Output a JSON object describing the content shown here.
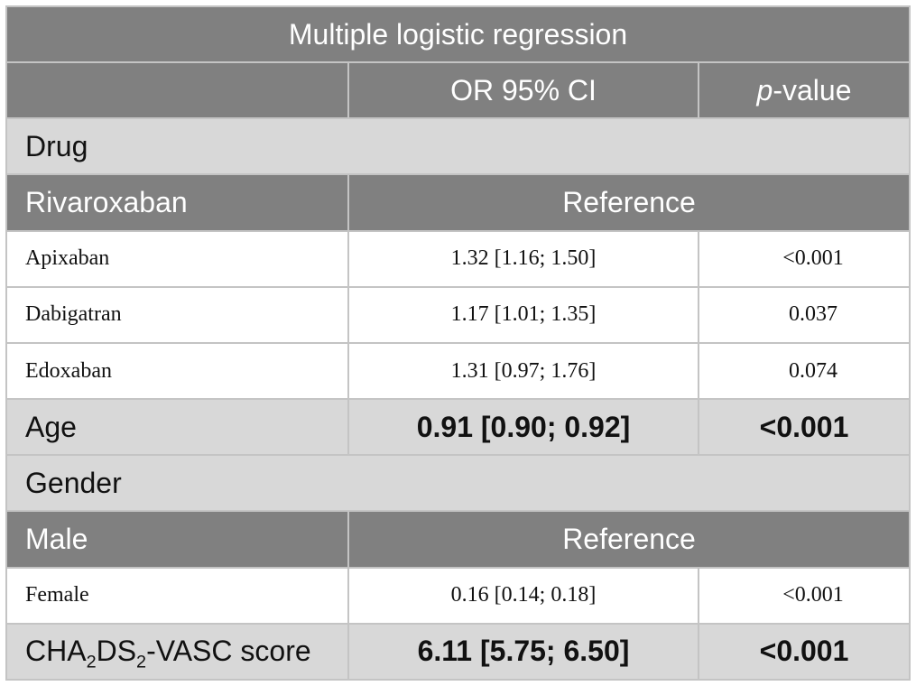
{
  "title": "Multiple logistic regression",
  "header": {
    "blank": "",
    "or_col": "OR 95% CI",
    "p_italic": "p",
    "p_rest": "-value"
  },
  "groups": {
    "drug": {
      "label": "Drug",
      "reference_row": {
        "name": "Rivaroxaban",
        "value": "Reference"
      },
      "rows": [
        {
          "name": "Apixaban",
          "or": "1.32 [1.16; 1.50]",
          "p": "<0.001"
        },
        {
          "name": "Dabigatran",
          "or": "1.17 [1.01; 1.35]",
          "p": "0.037"
        },
        {
          "name": "Edoxaban",
          "or": "1.31 [0.97; 1.76]",
          "p": "0.074"
        }
      ]
    },
    "age": {
      "name": "Age",
      "or": "0.91 [0.90; 0.92]",
      "p": "<0.001"
    },
    "gender": {
      "label": "Gender",
      "reference_row": {
        "name": "Male",
        "value": "Reference"
      },
      "rows": [
        {
          "name": "Female",
          "or": "0.16 [0.14; 0.18]",
          "p": "<0.001"
        }
      ]
    },
    "cha2ds2": {
      "name_parts": [
        "CHA",
        "2",
        "DS",
        "2",
        "-VASC score"
      ],
      "or": "6.11 [5.75; 6.50]",
      "p": "<0.001"
    }
  },
  "colors": {
    "dark_header": "#808080",
    "light_row": "#d8d8d8",
    "border": "#c4c4c4"
  }
}
